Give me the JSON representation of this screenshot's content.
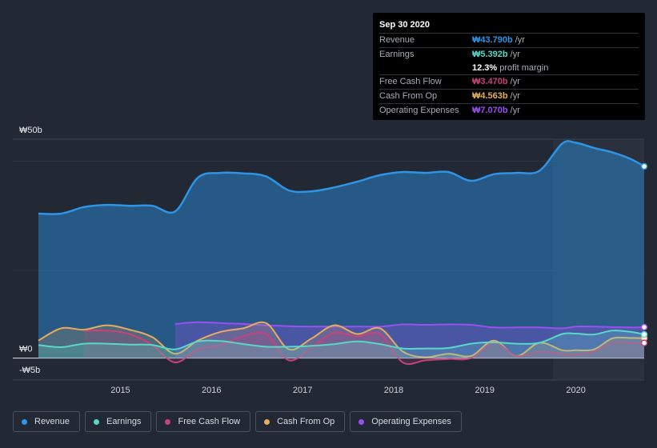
{
  "colors": {
    "revenue": "#2d94e6",
    "earnings": "#58d8c6",
    "free_cash_flow": "#c7427b",
    "cash_from_op": "#e6ac5e",
    "operating_expenses": "#9b4ff0"
  },
  "tooltip": {
    "date": "Sep 30 2020",
    "rows": [
      {
        "label": "Revenue",
        "value": "₩43.790b",
        "unit": "/yr",
        "color_key": "revenue"
      },
      {
        "label": "Earnings",
        "value": "₩5.392b",
        "unit": "/yr",
        "color_key": "earnings"
      },
      {
        "label": "Free Cash Flow",
        "value": "₩3.470b",
        "unit": "/yr",
        "color_key": "free_cash_flow"
      },
      {
        "label": "Cash From Op",
        "value": "₩4.563b",
        "unit": "/yr",
        "color_key": "cash_from_op"
      },
      {
        "label": "Operating Expenses",
        "value": "₩7.070b",
        "unit": "/yr",
        "color_key": "operating_expenses"
      }
    ],
    "profit_margin_value": "12.3%",
    "profit_margin_label": "profit margin"
  },
  "legend": [
    {
      "label": "Revenue",
      "color_key": "revenue"
    },
    {
      "label": "Earnings",
      "color_key": "earnings"
    },
    {
      "label": "Free Cash Flow",
      "color_key": "free_cash_flow"
    },
    {
      "label": "Cash From Op",
      "color_key": "cash_from_op"
    },
    {
      "label": "Operating Expenses",
      "color_key": "operating_expenses"
    }
  ],
  "chart_data": {
    "type": "line",
    "title": "",
    "xlabel": "",
    "ylabel": "",
    "ylim": [
      -5,
      50
    ],
    "y_tick_labels": [
      {
        "value": 50,
        "label": "₩50b"
      },
      {
        "value": 0,
        "label": "₩0"
      },
      {
        "value": -5,
        "label": "-₩5b"
      }
    ],
    "xlim": [
      2014.1,
      2020.75
    ],
    "x_ticks": [
      2015,
      2016,
      2017,
      2018,
      2019,
      2020
    ],
    "x_tick_labels": [
      "2015",
      "2016",
      "2017",
      "2018",
      "2019",
      "2020"
    ],
    "highlight_start": 2019.75,
    "series": [
      {
        "name": "Revenue",
        "key": "revenue",
        "fill": true,
        "fill_opacity": 0.45,
        "x": [
          2014.1,
          2014.35,
          2014.6,
          2014.85,
          2015.1,
          2015.35,
          2015.6,
          2015.85,
          2016.1,
          2016.35,
          2016.6,
          2016.85,
          2017.1,
          2017.35,
          2017.6,
          2017.85,
          2018.1,
          2018.35,
          2018.6,
          2018.85,
          2019.1,
          2019.35,
          2019.6,
          2019.85,
          2020.0,
          2020.2,
          2020.4,
          2020.6,
          2020.75
        ],
        "y": [
          33.0,
          33.0,
          34.5,
          35.0,
          34.8,
          34.8,
          33.5,
          41.2,
          42.3,
          42.2,
          41.5,
          38.3,
          38.1,
          39.0,
          40.3,
          41.8,
          42.5,
          42.3,
          42.5,
          40.5,
          42.0,
          42.3,
          42.8,
          49.0,
          49.2,
          48.0,
          47.0,
          45.5,
          43.79
        ]
      },
      {
        "name": "Earnings",
        "key": "earnings",
        "fill": true,
        "fill_opacity": 0.25,
        "x": [
          2014.1,
          2014.35,
          2014.6,
          2014.85,
          2015.1,
          2015.35,
          2015.6,
          2015.85,
          2016.1,
          2016.35,
          2016.6,
          2016.85,
          2017.1,
          2017.35,
          2017.6,
          2017.85,
          2018.1,
          2018.35,
          2018.6,
          2018.85,
          2019.1,
          2019.35,
          2019.6,
          2019.85,
          2020.0,
          2020.2,
          2020.4,
          2020.6,
          2020.75
        ],
        "y": [
          3.0,
          2.5,
          3.3,
          3.3,
          3.1,
          3.0,
          2.0,
          3.8,
          3.9,
          3.2,
          2.6,
          2.6,
          2.8,
          3.2,
          3.8,
          3.2,
          2.2,
          2.2,
          2.3,
          3.3,
          3.6,
          3.3,
          3.5,
          5.5,
          5.6,
          5.4,
          6.3,
          6.0,
          5.39
        ]
      },
      {
        "name": "Free Cash Flow",
        "key": "free_cash_flow",
        "fill": true,
        "fill_opacity": 0.2,
        "x": [
          2014.6,
          2014.85,
          2015.1,
          2015.35,
          2015.6,
          2015.85,
          2016.1,
          2016.35,
          2016.6,
          2016.85,
          2017.1,
          2017.35,
          2017.6,
          2017.85,
          2018.1,
          2018.35,
          2018.6,
          2018.85,
          2019.1,
          2019.35,
          2019.6,
          2019.85,
          2020.0,
          2020.2,
          2020.4,
          2020.6,
          2020.75
        ],
        "y": [
          6.2,
          6.3,
          5.5,
          3.0,
          -1.0,
          2.0,
          3.0,
          5.0,
          5.5,
          -0.5,
          2.5,
          5.8,
          5.0,
          5.5,
          -1.0,
          -0.5,
          -0.2,
          0.0,
          3.5,
          0.5,
          1.5,
          1.0,
          0.8,
          1.5,
          3.5,
          3.5,
          3.47
        ]
      },
      {
        "name": "Cash From Op",
        "key": "cash_from_op",
        "fill": true,
        "fill_opacity": 0.2,
        "x": [
          2014.1,
          2014.35,
          2014.6,
          2014.85,
          2015.1,
          2015.35,
          2015.6,
          2015.85,
          2016.1,
          2016.35,
          2016.6,
          2016.85,
          2017.1,
          2017.35,
          2017.6,
          2017.85,
          2018.1,
          2018.35,
          2018.6,
          2018.85,
          2019.1,
          2019.35,
          2019.6,
          2019.85,
          2020.0,
          2020.2,
          2020.4,
          2020.6,
          2020.75
        ],
        "y": [
          4.0,
          6.8,
          6.5,
          7.5,
          6.5,
          4.8,
          1.0,
          4.0,
          6.0,
          6.8,
          8.0,
          2.0,
          4.5,
          7.5,
          5.5,
          6.8,
          1.5,
          0.2,
          1.0,
          0.5,
          4.0,
          0.5,
          3.5,
          1.8,
          1.8,
          2.0,
          4.5,
          4.6,
          4.563
        ]
      },
      {
        "name": "Operating Expenses",
        "key": "operating_expenses",
        "fill": true,
        "fill_opacity": 0.3,
        "x": [
          2015.6,
          2015.85,
          2016.1,
          2016.35,
          2016.6,
          2016.85,
          2017.1,
          2017.35,
          2017.6,
          2017.85,
          2018.1,
          2018.35,
          2018.6,
          2018.85,
          2019.1,
          2019.35,
          2019.6,
          2019.85,
          2020.0,
          2020.2,
          2020.4,
          2020.6,
          2020.75
        ],
        "y": [
          7.8,
          8.2,
          8.0,
          7.8,
          7.5,
          7.3,
          7.2,
          7.2,
          7.2,
          7.2,
          7.7,
          7.6,
          7.7,
          7.6,
          7.0,
          7.0,
          7.0,
          6.8,
          7.2,
          7.2,
          7.1,
          7.0,
          7.07
        ]
      }
    ]
  }
}
